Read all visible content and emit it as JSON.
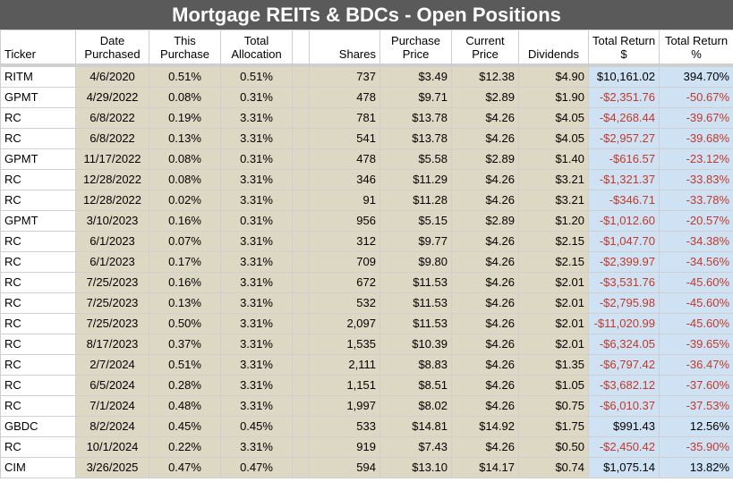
{
  "title": "Mortgage REITs & BDCs - Open Positions",
  "headers": {
    "ticker": "Ticker",
    "date_purchased": [
      "Date",
      "Purchased"
    ],
    "this_purchase": [
      "This",
      "Purchase"
    ],
    "total_allocation": [
      "Total",
      "Allocation"
    ],
    "shares": "Shares",
    "purchase_price": [
      "Purchase",
      "Price"
    ],
    "current_price": [
      "Current",
      "Price"
    ],
    "dividends": "Dividends",
    "total_return_dollar": [
      "Total Return",
      "$"
    ],
    "total_return_pct": [
      "Total Return",
      "%"
    ]
  },
  "colors": {
    "title_bar": "#5a5a5a",
    "tan_cells": "#ddd8c4",
    "blue_cells": "#cfe2f3",
    "negative_text": "#c0392b"
  },
  "rows": [
    {
      "ticker": "RITM",
      "date": "4/6/2020",
      "this_purchase": "0.51%",
      "total_allocation": "0.51%",
      "shares": "737",
      "purchase_price": "$3.49",
      "current_price": "$12.38",
      "dividends": "$4.90",
      "total_return_dollar": "$10,161.02",
      "total_return_pct": "394.70%",
      "negative": false
    },
    {
      "ticker": "GPMT",
      "date": "4/29/2022",
      "this_purchase": "0.08%",
      "total_allocation": "0.31%",
      "shares": "478",
      "purchase_price": "$9.71",
      "current_price": "$2.89",
      "dividends": "$1.90",
      "total_return_dollar": "-$2,351.76",
      "total_return_pct": "-50.67%",
      "negative": true
    },
    {
      "ticker": "RC",
      "date": "6/8/2022",
      "this_purchase": "0.19%",
      "total_allocation": "3.31%",
      "shares": "781",
      "purchase_price": "$13.78",
      "current_price": "$4.26",
      "dividends": "$4.05",
      "total_return_dollar": "-$4,268.44",
      "total_return_pct": "-39.67%",
      "negative": true
    },
    {
      "ticker": "RC",
      "date": "6/8/2022",
      "this_purchase": "0.13%",
      "total_allocation": "3.31%",
      "shares": "541",
      "purchase_price": "$13.78",
      "current_price": "$4.26",
      "dividends": "$4.05",
      "total_return_dollar": "-$2,957.27",
      "total_return_pct": "-39.68%",
      "negative": true
    },
    {
      "ticker": "GPMT",
      "date": "11/17/2022",
      "this_purchase": "0.08%",
      "total_allocation": "0.31%",
      "shares": "478",
      "purchase_price": "$5.58",
      "current_price": "$2.89",
      "dividends": "$1.40",
      "total_return_dollar": "-$616.57",
      "total_return_pct": "-23.12%",
      "negative": true
    },
    {
      "ticker": "RC",
      "date": "12/28/2022",
      "this_purchase": "0.08%",
      "total_allocation": "3.31%",
      "shares": "346",
      "purchase_price": "$11.29",
      "current_price": "$4.26",
      "dividends": "$3.21",
      "total_return_dollar": "-$1,321.37",
      "total_return_pct": "-33.83%",
      "negative": true
    },
    {
      "ticker": "RC",
      "date": "12/28/2022",
      "this_purchase": "0.02%",
      "total_allocation": "3.31%",
      "shares": "91",
      "purchase_price": "$11.28",
      "current_price": "$4.26",
      "dividends": "$3.21",
      "total_return_dollar": "-$346.71",
      "total_return_pct": "-33.78%",
      "negative": true
    },
    {
      "ticker": "GPMT",
      "date": "3/10/2023",
      "this_purchase": "0.16%",
      "total_allocation": "0.31%",
      "shares": "956",
      "purchase_price": "$5.15",
      "current_price": "$2.89",
      "dividends": "$1.20",
      "total_return_dollar": "-$1,012.60",
      "total_return_pct": "-20.57%",
      "negative": true
    },
    {
      "ticker": "RC",
      "date": "6/1/2023",
      "this_purchase": "0.07%",
      "total_allocation": "3.31%",
      "shares": "312",
      "purchase_price": "$9.77",
      "current_price": "$4.26",
      "dividends": "$2.15",
      "total_return_dollar": "-$1,047.70",
      "total_return_pct": "-34.38%",
      "negative": true
    },
    {
      "ticker": "RC",
      "date": "6/1/2023",
      "this_purchase": "0.17%",
      "total_allocation": "3.31%",
      "shares": "709",
      "purchase_price": "$9.80",
      "current_price": "$4.26",
      "dividends": "$2.15",
      "total_return_dollar": "-$2,399.97",
      "total_return_pct": "-34.56%",
      "negative": true
    },
    {
      "ticker": "RC",
      "date": "7/25/2023",
      "this_purchase": "0.16%",
      "total_allocation": "3.31%",
      "shares": "672",
      "purchase_price": "$11.53",
      "current_price": "$4.26",
      "dividends": "$2.01",
      "total_return_dollar": "-$3,531.76",
      "total_return_pct": "-45.60%",
      "negative": true
    },
    {
      "ticker": "RC",
      "date": "7/25/2023",
      "this_purchase": "0.13%",
      "total_allocation": "3.31%",
      "shares": "532",
      "purchase_price": "$11.53",
      "current_price": "$4.26",
      "dividends": "$2.01",
      "total_return_dollar": "-$2,795.98",
      "total_return_pct": "-45.60%",
      "negative": true
    },
    {
      "ticker": "RC",
      "date": "7/25/2023",
      "this_purchase": "0.50%",
      "total_allocation": "3.31%",
      "shares": "2,097",
      "purchase_price": "$11.53",
      "current_price": "$4.26",
      "dividends": "$2.01",
      "total_return_dollar": "-$11,020.99",
      "total_return_pct": "-45.60%",
      "negative": true
    },
    {
      "ticker": "RC",
      "date": "8/17/2023",
      "this_purchase": "0.37%",
      "total_allocation": "3.31%",
      "shares": "1,535",
      "purchase_price": "$10.39",
      "current_price": "$4.26",
      "dividends": "$2.01",
      "total_return_dollar": "-$6,324.05",
      "total_return_pct": "-39.65%",
      "negative": true
    },
    {
      "ticker": "RC",
      "date": "2/7/2024",
      "this_purchase": "0.51%",
      "total_allocation": "3.31%",
      "shares": "2,111",
      "purchase_price": "$8.83",
      "current_price": "$4.26",
      "dividends": "$1.35",
      "total_return_dollar": "-$6,797.42",
      "total_return_pct": "-36.47%",
      "negative": true
    },
    {
      "ticker": "RC",
      "date": "6/5/2024",
      "this_purchase": "0.28%",
      "total_allocation": "3.31%",
      "shares": "1,151",
      "purchase_price": "$8.51",
      "current_price": "$4.26",
      "dividends": "$1.05",
      "total_return_dollar": "-$3,682.12",
      "total_return_pct": "-37.60%",
      "negative": true
    },
    {
      "ticker": "RC",
      "date": "7/1/2024",
      "this_purchase": "0.48%",
      "total_allocation": "3.31%",
      "shares": "1,997",
      "purchase_price": "$8.02",
      "current_price": "$4.26",
      "dividends": "$0.75",
      "total_return_dollar": "-$6,010.37",
      "total_return_pct": "-37.53%",
      "negative": true
    },
    {
      "ticker": "GBDC",
      "date": "8/2/2024",
      "this_purchase": "0.45%",
      "total_allocation": "0.45%",
      "shares": "533",
      "purchase_price": "$14.81",
      "current_price": "$14.92",
      "dividends": "$1.75",
      "total_return_dollar": "$991.43",
      "total_return_pct": "12.56%",
      "negative": false
    },
    {
      "ticker": "RC",
      "date": "10/1/2024",
      "this_purchase": "0.22%",
      "total_allocation": "3.31%",
      "shares": "919",
      "purchase_price": "$7.43",
      "current_price": "$4.26",
      "dividends": "$0.50",
      "total_return_dollar": "-$2,450.42",
      "total_return_pct": "-35.90%",
      "negative": true
    },
    {
      "ticker": "CIM",
      "date": "3/26/2025",
      "this_purchase": "0.47%",
      "total_allocation": "0.47%",
      "shares": "594",
      "purchase_price": "$13.10",
      "current_price": "$14.17",
      "dividends": "$0.74",
      "total_return_dollar": "$1,075.14",
      "total_return_pct": "13.82%",
      "negative": false
    }
  ]
}
